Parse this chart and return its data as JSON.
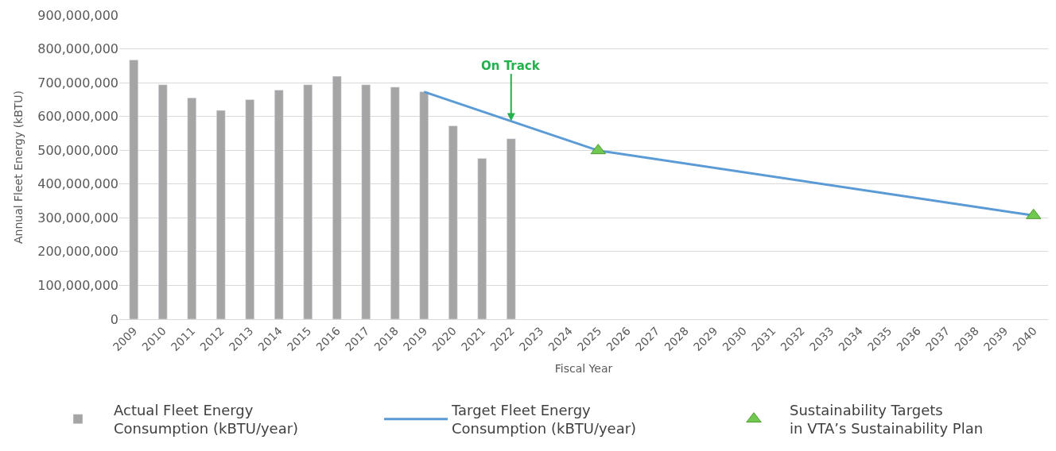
{
  "chart_data": {
    "type": "bar",
    "xlabel": "Fiscal Year",
    "ylabel": "Annual Fleet Energy (kBTU)",
    "categories": [
      "2009",
      "2010",
      "2011",
      "2012",
      "2013",
      "2014",
      "2015",
      "2016",
      "2017",
      "2018",
      "2019",
      "2020",
      "2021",
      "2022",
      "2023",
      "2024",
      "2025",
      "2026",
      "2027",
      "2028",
      "2029",
      "2030",
      "2031",
      "2032",
      "2033",
      "2034",
      "2035",
      "2036",
      "2037",
      "2038",
      "2039",
      "2040"
    ],
    "series": [
      {
        "name": "Actual Fleet Energy\nConsumption (kBTU/year)",
        "color": "#a5a5a5",
        "values": [
          767000000,
          694000000,
          655000000,
          618000000,
          650000000,
          678000000,
          694000000,
          719000000,
          694000000,
          687000000,
          673000000,
          572000000,
          476000000,
          534000000,
          null,
          null,
          null,
          null,
          null,
          null,
          null,
          null,
          null,
          null,
          null,
          null,
          null,
          null,
          null,
          null,
          null,
          null
        ]
      },
      {
        "name": "Target Fleet Energy\nConsumption (kBTU/year)",
        "type": "line",
        "color": "#5b9bd5",
        "marker": "none",
        "line_style": "solid",
        "values": [
          null,
          null,
          null,
          null,
          null,
          null,
          null,
          null,
          null,
          null,
          673000000,
          null,
          null,
          null,
          null,
          null,
          499000000,
          null,
          null,
          null,
          null,
          null,
          null,
          null,
          null,
          null,
          null,
          null,
          null,
          null,
          null,
          307000000
        ]
      },
      {
        "name": "Sustainability Targets\nin VTA’s Sustainability Plan",
        "type": "scatter",
        "color": "#70c84f",
        "marker": "triangle",
        "values": [
          null,
          null,
          null,
          null,
          null,
          null,
          null,
          null,
          null,
          null,
          null,
          null,
          null,
          null,
          null,
          null,
          499000000,
          null,
          null,
          null,
          null,
          null,
          null,
          null,
          null,
          null,
          null,
          null,
          null,
          null,
          null,
          307000000
        ]
      }
    ],
    "annotations": [
      {
        "text": "On Track",
        "x": "2022",
        "y": 586000000
      }
    ],
    "ylim": [
      0,
      900000000
    ],
    "yticks": [
      0,
      {
        "value": 100000000,
        "label": "100,000,000"
      },
      {
        "value": 200000000,
        "label": "200,000,000"
      },
      {
        "value": 300000000,
        "label": "300,000,000"
      },
      {
        "value": 400000000,
        "label": "400,000,000"
      },
      {
        "value": 500000000,
        "label": "500,000,000"
      },
      {
        "value": 600000000,
        "label": "600,000,000"
      },
      {
        "value": 700000000,
        "label": "700,000,000"
      },
      {
        "value": 800000000,
        "label": "800,000,000"
      },
      {
        "value": 900000000,
        "label": "900,000,000"
      }
    ],
    "grid": "y",
    "legend": "bottom"
  }
}
